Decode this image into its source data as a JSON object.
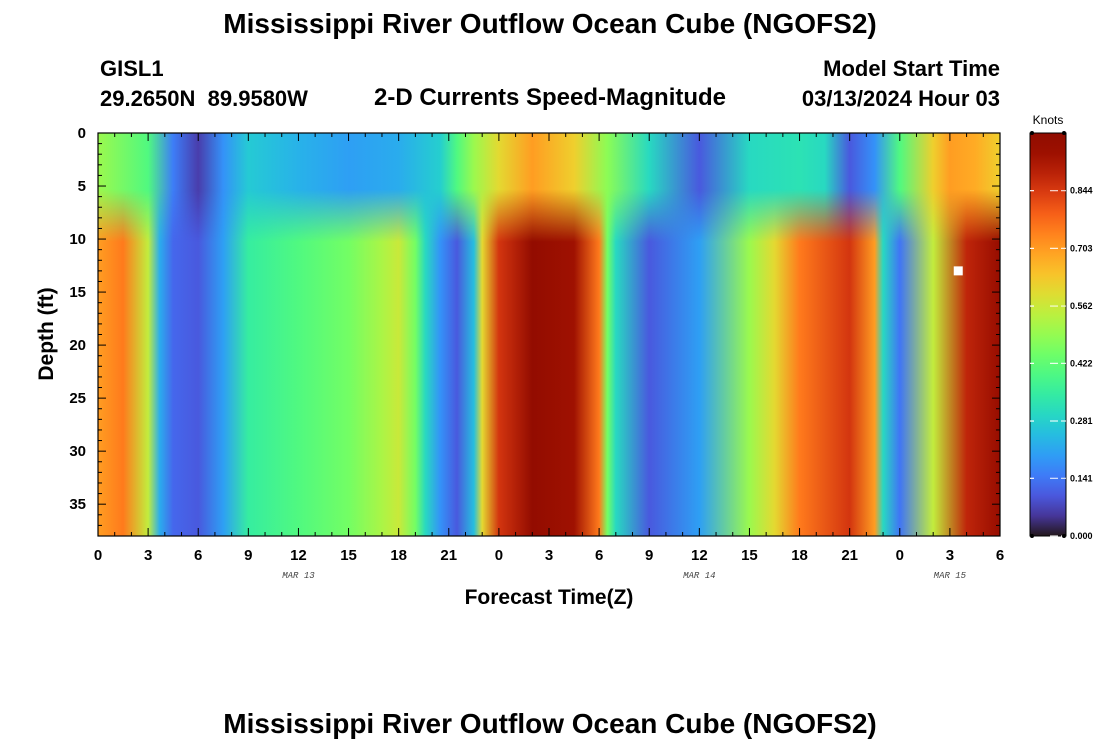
{
  "page": {
    "title": "Mississippi River Outflow Ocean Cube (NGOFS2)",
    "station_id": "GISL1",
    "station_coords": "29.2650N  89.9580W",
    "subtitle": "2-D Currents Speed-Magnitude",
    "model_start_label": "Model Start Time",
    "model_start_value": "03/13/2024 Hour 03",
    "bottom_title": "Mississippi River Outflow Ocean Cube (NGOFS2)"
  },
  "chart_data": {
    "type": "heatmap",
    "xlabel": "Forecast Time(Z)",
    "ylabel": "Depth (ft)",
    "x_ticks": [
      "0",
      "3",
      "6",
      "9",
      "12",
      "15",
      "18",
      "21",
      "0",
      "3",
      "6",
      "9",
      "12",
      "15",
      "18",
      "21",
      "0",
      "3",
      "6"
    ],
    "x_range_hours": [
      0,
      54
    ],
    "date_labels": [
      {
        "text": "MAR 13",
        "hour": 12
      },
      {
        "text": "MAR 14",
        "hour": 36
      },
      {
        "text": "MAR 15",
        "hour": 51
      }
    ],
    "y_ticks": [
      "0",
      "5",
      "10",
      "15",
      "20",
      "25",
      "30",
      "35"
    ],
    "ylim": [
      0,
      38
    ],
    "y_inverted": true,
    "colorbar": {
      "title": "Knots",
      "min": 0.0,
      "max": 0.985,
      "tick_values": [
        0.0,
        0.141,
        0.281,
        0.422,
        0.562,
        0.703,
        0.844
      ],
      "tick_labels": [
        "0.000",
        "0.141",
        "0.281",
        "0.422",
        "0.562",
        "0.703",
        "0.844"
      ],
      "colormap": "turbo"
    },
    "surface_profile": {
      "hours": [
        0,
        3,
        4.5,
        6,
        7.5,
        9,
        12,
        15,
        18,
        20.5,
        21.5,
        22.5,
        24,
        26,
        28.5,
        30.5,
        33,
        36,
        39,
        42,
        43.5,
        45,
        46.5,
        48,
        50,
        51,
        52.5,
        54
      ],
      "knots": [
        0.5,
        0.4,
        0.15,
        0.06,
        0.18,
        0.27,
        0.23,
        0.2,
        0.22,
        0.28,
        0.4,
        0.5,
        0.6,
        0.7,
        0.62,
        0.48,
        0.3,
        0.1,
        0.3,
        0.32,
        0.3,
        0.1,
        0.18,
        0.4,
        0.62,
        0.7,
        0.68,
        0.62
      ]
    },
    "deep_profile": {
      "hours": [
        0,
        1.5,
        3,
        3.7,
        4.5,
        6,
        7.5,
        9,
        12,
        15,
        17,
        18,
        19,
        19.6,
        20.5,
        21.5,
        22.5,
        23,
        24,
        26,
        28.5,
        30,
        30.5,
        31,
        33,
        36,
        39,
        40.5,
        42,
        45,
        46.5,
        47,
        48,
        50,
        52,
        54
      ],
      "knots": [
        0.7,
        0.75,
        0.55,
        0.22,
        0.12,
        0.1,
        0.2,
        0.35,
        0.4,
        0.45,
        0.52,
        0.56,
        0.45,
        0.3,
        0.18,
        0.1,
        0.25,
        0.6,
        0.85,
        0.96,
        0.93,
        0.75,
        0.45,
        0.3,
        0.1,
        0.2,
        0.5,
        0.6,
        0.75,
        0.85,
        0.7,
        0.3,
        0.14,
        0.55,
        0.88,
        0.95
      ]
    },
    "marker": {
      "hour": 51.5,
      "depth_ft": 13,
      "color": "#ffffff"
    }
  }
}
